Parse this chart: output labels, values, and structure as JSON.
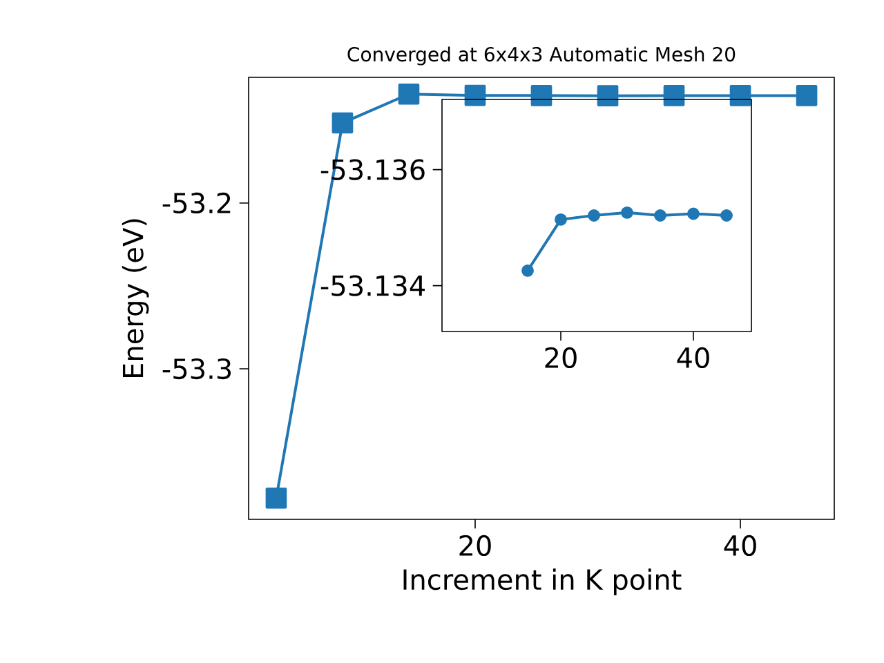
{
  "chart_data": [
    {
      "type": "line",
      "title": "Converged at 6x4x3 Automatic Mesh 20",
      "xlabel": "Increment in K point",
      "ylabel": "Energy (eV)",
      "x": [
        5,
        10,
        15,
        20,
        25,
        30,
        35,
        40,
        45
      ],
      "values": [
        -53.378,
        -53.1517,
        -53.1343,
        -53.1351,
        -53.1352,
        -53.1353,
        -53.1352,
        -53.1352,
        -53.1352
      ],
      "color": "#1f77b4",
      "marker": "square",
      "xlim": [
        2.92,
        47.08
      ],
      "ylim": [
        -53.3908,
        -53.1242
      ],
      "xticks": [
        20,
        40
      ],
      "yticks": [
        -53.3,
        -53.2
      ]
    },
    {
      "type": "line",
      "x": [
        15,
        20,
        25,
        30,
        35,
        40,
        45
      ],
      "values": [
        -53.13426,
        -53.13514,
        -53.13521,
        -53.13526,
        -53.13521,
        -53.13524,
        -53.13521
      ],
      "color": "#1f77b4",
      "marker": "circle",
      "xlim": [
        2.08,
        48.75
      ],
      "ylim": [
        -53.13321,
        -53.13721
      ],
      "xticks": [
        20,
        40
      ],
      "yticks": [
        -53.136,
        -53.134
      ]
    }
  ]
}
